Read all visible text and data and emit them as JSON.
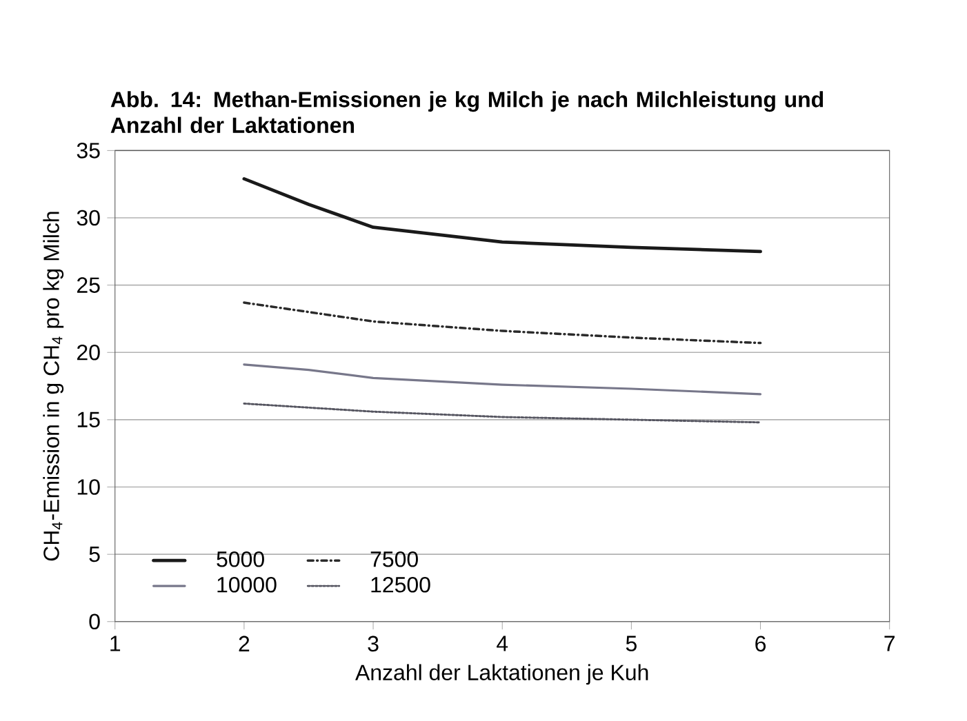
{
  "chart_data": {
    "type": "line",
    "title": "Abb. 14: Methan-Emissionen je kg Milch je nach Milchleistung und Anzahl der Laktationen",
    "xlabel": "Anzahl der Laktationen je Kuh",
    "ylabel": "CH$_{4}$-Emission in g CH$_{4}$ pro kg Milch",
    "xlim": [
      1,
      7
    ],
    "xticks": [
      1,
      2,
      3,
      4,
      5,
      6,
      7
    ],
    "ylim": [
      0,
      35
    ],
    "yticks": [
      0,
      5,
      10,
      15,
      20,
      25,
      30,
      35
    ],
    "grid": "y",
    "legend": "bottom left",
    "marker": "none",
    "series": [
      {
        "name": "5000",
        "color": "#1a1a1a",
        "line_style": "solid",
        "x": [
          2,
          2.5,
          3,
          4,
          5,
          6
        ],
        "values": [
          32.9,
          31.0,
          29.3,
          28.2,
          27.8,
          27.5
        ]
      },
      {
        "name": "7500",
        "color": "#2a2a2a",
        "line_style": "dashed",
        "x": [
          2,
          2.5,
          3,
          4,
          5,
          6
        ],
        "values": [
          23.7,
          23.0,
          22.3,
          21.6,
          21.1,
          20.7
        ]
      },
      {
        "name": "10000",
        "color": "#77778a",
        "line_style": "solid",
        "x": [
          2,
          2.5,
          3,
          4,
          5,
          6
        ],
        "values": [
          19.1,
          18.7,
          18.1,
          17.6,
          17.3,
          16.9
        ]
      },
      {
        "name": "12500",
        "color": "#555560",
        "line_style": "dotted",
        "x": [
          2,
          2.5,
          3,
          4,
          5,
          6
        ],
        "values": [
          16.2,
          15.9,
          15.6,
          15.2,
          15.0,
          14.8
        ]
      }
    ]
  }
}
